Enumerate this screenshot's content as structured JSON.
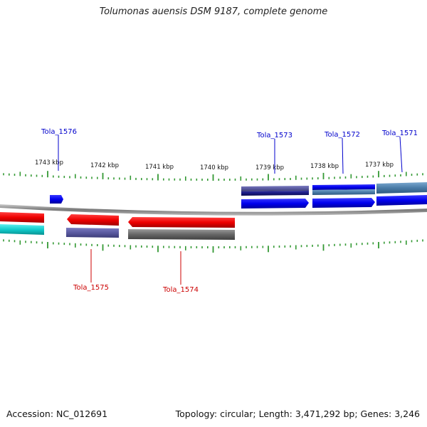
{
  "title": "Tolumonas auensis DSM 9187, complete genome",
  "footer": {
    "accession": "Accession: NC_012691",
    "summary": "Topology: circular; Length: 3,471,292 bp; Genes: 3,246"
  },
  "ruler": {
    "labels": [
      "1743 kbp",
      "1742 kbp",
      "1741 kbp",
      "1740 kbp",
      "1739 kbp",
      "1738 kbp",
      "1737 kbp"
    ]
  },
  "gene_labels": {
    "top": [
      "Tola_1576",
      "Tola_1573",
      "Tola_1572",
      "Tola_1571"
    ],
    "bottom": [
      "Tola_1575",
      "Tola_1574"
    ],
    "top_color": "#0000cc",
    "bottom_color": "#cc0000"
  },
  "colors": {
    "tick": "#339933",
    "backbone": "#777777",
    "forward_blue": "#0000ee",
    "dark_blue": "#1a1a80",
    "slate": "#5a5aa0",
    "steel": "#4a7ca8",
    "red": "#ee0000",
    "gray": "#666666",
    "cyan": "#11cccc"
  }
}
